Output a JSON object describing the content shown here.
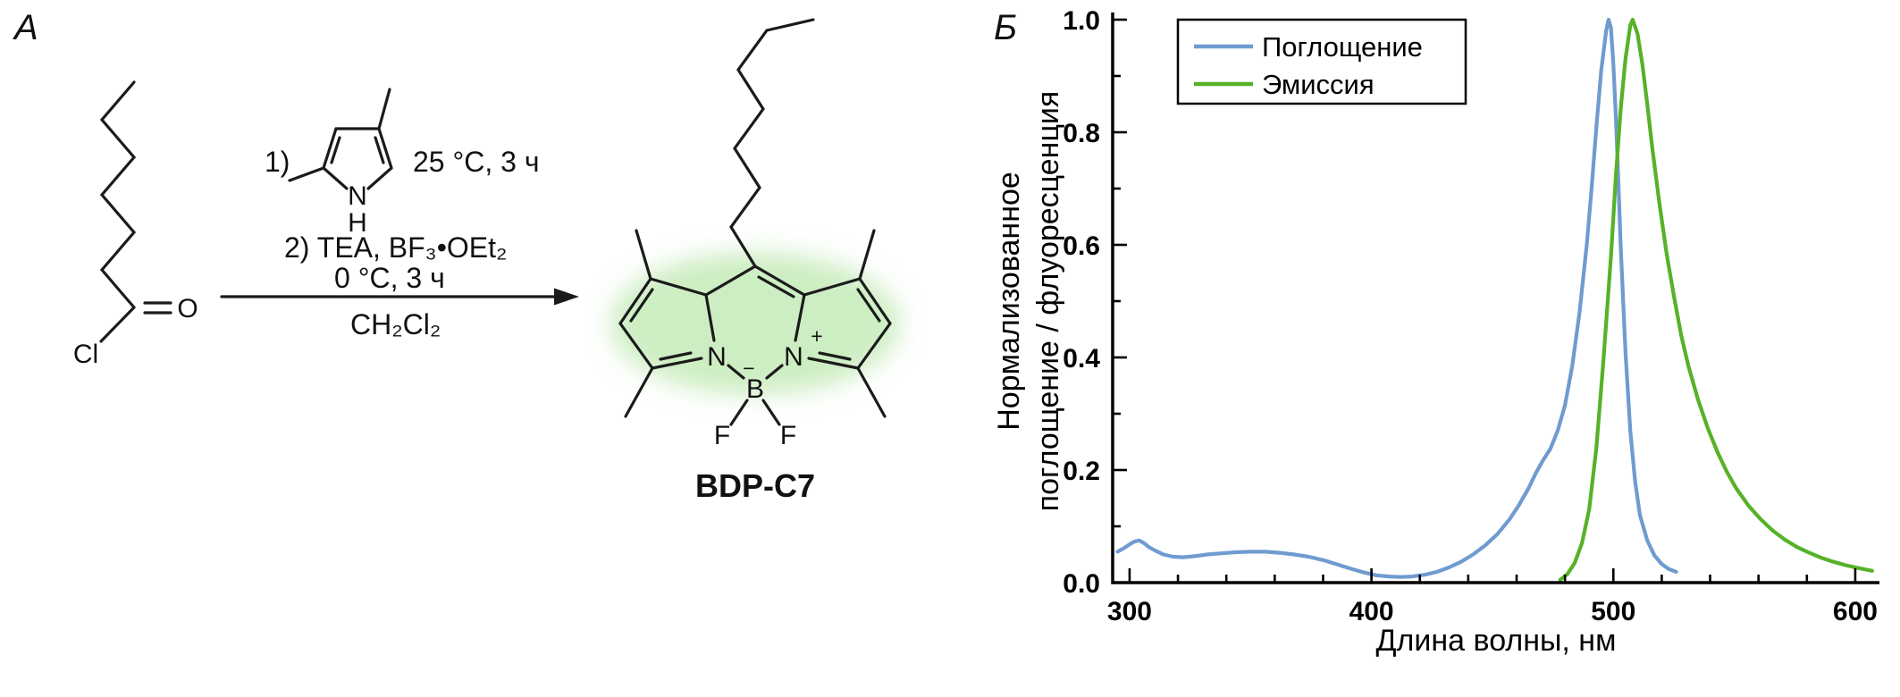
{
  "figure": {
    "panel_a_label": "А",
    "panel_b_label": "Б"
  },
  "scheme": {
    "step1_prefix": "1)",
    "step1_conditions": "25 °C, 3 ч",
    "step2": "2) TEA, BF₃•OEt₂",
    "step2_conditions": "0 °C, 3 ч",
    "solvent": "CH₂Cl₂",
    "product_name": "BDP-C7",
    "atoms": {
      "Cl": "Cl",
      "O": "O",
      "N": "N",
      "H": "H",
      "B": "B",
      "F": "F",
      "minus": "−",
      "plus": "+"
    }
  },
  "chart_data": {
    "type": "line",
    "title": "",
    "xlabel": "Длина волны, нм",
    "ylabel_line1": "Нормализованное",
    "ylabel_line2": "поглощение / флуоресценция",
    "xlim": [
      293,
      610
    ],
    "ylim": [
      0,
      1.0
    ],
    "xticks": [
      300,
      400,
      500,
      600
    ],
    "xtick_labels": [
      "300",
      "400",
      "500",
      "600"
    ],
    "x_minor_step": 20,
    "yticks": [
      0,
      0.2,
      0.4,
      0.6,
      0.8,
      1.0
    ],
    "ytick_labels": [
      "0.0",
      "0.2",
      "0.4",
      "0.6",
      "0.8",
      "1.0"
    ],
    "y_minor_step": 0.1,
    "grid": false,
    "legend_position": "top-left",
    "series": [
      {
        "name": "Поглощение",
        "color": "#6f9bd0",
        "peak_nm": 497,
        "points": [
          [
            295,
            0.055
          ],
          [
            298,
            0.062
          ],
          [
            300,
            0.068
          ],
          [
            302,
            0.073
          ],
          [
            304,
            0.075
          ],
          [
            306,
            0.07
          ],
          [
            308,
            0.063
          ],
          [
            311,
            0.056
          ],
          [
            314,
            0.05
          ],
          [
            318,
            0.046
          ],
          [
            322,
            0.045
          ],
          [
            327,
            0.047
          ],
          [
            332,
            0.05
          ],
          [
            338,
            0.052
          ],
          [
            344,
            0.054
          ],
          [
            350,
            0.055
          ],
          [
            356,
            0.055
          ],
          [
            362,
            0.053
          ],
          [
            368,
            0.05
          ],
          [
            374,
            0.046
          ],
          [
            380,
            0.04
          ],
          [
            386,
            0.032
          ],
          [
            392,
            0.024
          ],
          [
            397,
            0.018
          ],
          [
            402,
            0.013
          ],
          [
            407,
            0.011
          ],
          [
            412,
            0.01
          ],
          [
            417,
            0.011
          ],
          [
            422,
            0.014
          ],
          [
            427,
            0.019
          ],
          [
            432,
            0.027
          ],
          [
            437,
            0.037
          ],
          [
            442,
            0.05
          ],
          [
            447,
            0.066
          ],
          [
            452,
            0.086
          ],
          [
            457,
            0.112
          ],
          [
            461,
            0.138
          ],
          [
            465,
            0.168
          ],
          [
            468,
            0.195
          ],
          [
            471,
            0.218
          ],
          [
            474,
            0.238
          ],
          [
            477,
            0.27
          ],
          [
            480,
            0.315
          ],
          [
            483,
            0.385
          ],
          [
            486,
            0.48
          ],
          [
            489,
            0.6
          ],
          [
            491,
            0.7
          ],
          [
            493,
            0.81
          ],
          [
            495,
            0.91
          ],
          [
            497,
            0.98
          ],
          [
            498,
            1.0
          ],
          [
            499,
            0.985
          ],
          [
            500,
            0.92
          ],
          [
            501,
            0.83
          ],
          [
            502,
            0.72
          ],
          [
            503,
            0.6
          ],
          [
            505,
            0.41
          ],
          [
            507,
            0.27
          ],
          [
            509,
            0.18
          ],
          [
            511,
            0.12
          ],
          [
            514,
            0.075
          ],
          [
            517,
            0.048
          ],
          [
            520,
            0.033
          ],
          [
            523,
            0.024
          ],
          [
            526,
            0.019
          ]
        ]
      },
      {
        "name": "Эмиссия",
        "color": "#56b228",
        "peak_nm": 507,
        "points": [
          [
            478,
            0.005
          ],
          [
            481,
            0.015
          ],
          [
            484,
            0.035
          ],
          [
            487,
            0.07
          ],
          [
            490,
            0.13
          ],
          [
            493,
            0.24
          ],
          [
            496,
            0.4
          ],
          [
            499,
            0.58
          ],
          [
            501,
            0.72
          ],
          [
            503,
            0.84
          ],
          [
            505,
            0.93
          ],
          [
            507,
            0.99
          ],
          [
            508,
            1.0
          ],
          [
            510,
            0.975
          ],
          [
            512,
            0.92
          ],
          [
            514,
            0.85
          ],
          [
            516,
            0.775
          ],
          [
            519,
            0.675
          ],
          [
            522,
            0.585
          ],
          [
            525,
            0.51
          ],
          [
            528,
            0.44
          ],
          [
            531,
            0.385
          ],
          [
            535,
            0.325
          ],
          [
            539,
            0.275
          ],
          [
            543,
            0.232
          ],
          [
            547,
            0.196
          ],
          [
            551,
            0.166
          ],
          [
            556,
            0.136
          ],
          [
            561,
            0.112
          ],
          [
            566,
            0.092
          ],
          [
            571,
            0.076
          ],
          [
            576,
            0.063
          ],
          [
            581,
            0.053
          ],
          [
            586,
            0.044
          ],
          [
            591,
            0.037
          ],
          [
            596,
            0.031
          ],
          [
            601,
            0.026
          ],
          [
            607,
            0.021
          ]
        ]
      }
    ]
  }
}
